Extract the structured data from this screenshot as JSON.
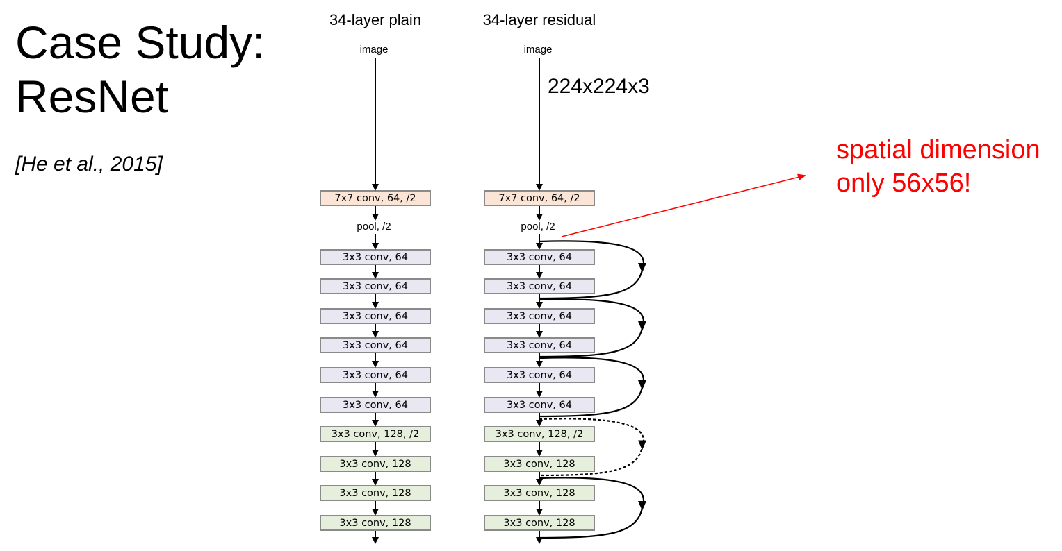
{
  "slide": {
    "title_line1": "Case Study:",
    "title_line2": "ResNet",
    "citation": "[He et al., 2015]"
  },
  "plain": {
    "title": "34-layer plain",
    "input_label": "image",
    "pool_label": "pool, /2",
    "layers": [
      {
        "label": "7x7 conv, 64, /2",
        "color": "#fbe5d6"
      },
      {
        "label": "3x3 conv, 64",
        "color": "#e9e7f1"
      },
      {
        "label": "3x3 conv, 64",
        "color": "#e9e7f1"
      },
      {
        "label": "3x3 conv, 64",
        "color": "#e9e7f1"
      },
      {
        "label": "3x3 conv, 64",
        "color": "#e9e7f1"
      },
      {
        "label": "3x3 conv, 64",
        "color": "#e9e7f1"
      },
      {
        "label": "3x3 conv, 64",
        "color": "#e9e7f1"
      },
      {
        "label": "3x3 conv, 128, /2",
        "color": "#e6efdb"
      },
      {
        "label": "3x3 conv, 128",
        "color": "#e6efdb"
      },
      {
        "label": "3x3 conv, 128",
        "color": "#e6efdb"
      },
      {
        "label": "3x3 conv, 128",
        "color": "#e6efdb"
      }
    ]
  },
  "residual": {
    "title": "34-layer residual",
    "input_label": "image",
    "pool_label": "pool, /2",
    "input_dim": "224x224x3",
    "layers": [
      {
        "label": "7x7 conv, 64, /2",
        "color": "#fbe5d6"
      },
      {
        "label": "3x3 conv, 64",
        "color": "#e9e7f1"
      },
      {
        "label": "3x3 conv, 64",
        "color": "#e9e7f1"
      },
      {
        "label": "3x3 conv, 64",
        "color": "#e9e7f1"
      },
      {
        "label": "3x3 conv, 64",
        "color": "#e9e7f1"
      },
      {
        "label": "3x3 conv, 64",
        "color": "#e9e7f1"
      },
      {
        "label": "3x3 conv, 64",
        "color": "#e9e7f1"
      },
      {
        "label": "3x3 conv, 128, /2",
        "color": "#e6efdb"
      },
      {
        "label": "3x3 conv, 128",
        "color": "#e6efdb"
      },
      {
        "label": "3x3 conv, 128",
        "color": "#e6efdb"
      },
      {
        "label": "3x3 conv, 128",
        "color": "#e6efdb"
      }
    ],
    "shortcuts": [
      {
        "kind": "identity"
      },
      {
        "kind": "identity"
      },
      {
        "kind": "identity"
      },
      {
        "kind": "projection"
      },
      {
        "kind": "identity"
      }
    ]
  },
  "annotation": {
    "line1": "spatial dimension",
    "line2": "only 56x56!",
    "color": "#ff0000"
  }
}
